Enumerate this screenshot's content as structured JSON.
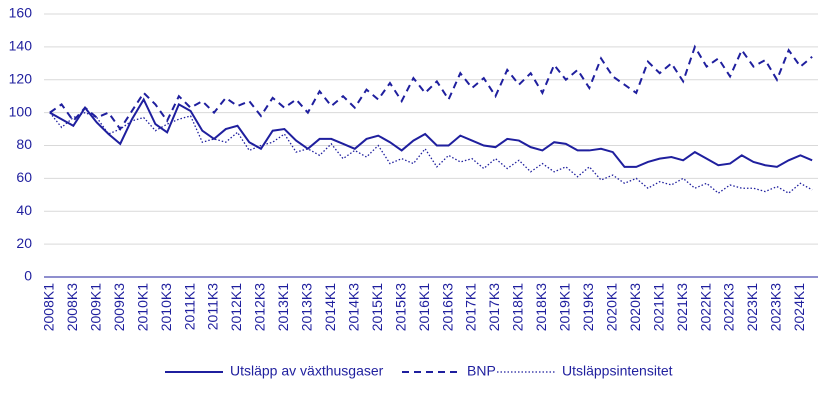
{
  "chart_data": {
    "type": "line",
    "categories": [
      "2008K1",
      null,
      "2008K3",
      null,
      "2009K1",
      null,
      "2009K3",
      null,
      "2010K1",
      null,
      "2010K3",
      null,
      "2011K1",
      null,
      "2011K3",
      null,
      "2012K1",
      null,
      "2012K3",
      null,
      "2013K1",
      null,
      "2013K3",
      null,
      "2014K1",
      null,
      "2014K3",
      null,
      "2015K1",
      null,
      "2015K3",
      null,
      "2016K1",
      null,
      "2016K3",
      null,
      "2017K1",
      null,
      "2017K3",
      null,
      "2018K1",
      null,
      "2018K3",
      null,
      "2019K1",
      null,
      "2019K3",
      null,
      "2020K1",
      null,
      "2020K3",
      null,
      "2021K1",
      null,
      "2021K3",
      null,
      "2022K1",
      null,
      "2022K3",
      null,
      "2023K1",
      null,
      "2023K3",
      null,
      "2024K1",
      null
    ],
    "series": [
      {
        "name": "Utsläpp av växthusgaser",
        "color": "#1f1f9e",
        "dash": "solid",
        "values": [
          100,
          96,
          92,
          103,
          94,
          87,
          81,
          96,
          108,
          93,
          88,
          105,
          101,
          89,
          84,
          90,
          92,
          82,
          78,
          89,
          90,
          83,
          78,
          84,
          84,
          81,
          78,
          84,
          86,
          82,
          77,
          83,
          87,
          80,
          80,
          86,
          83,
          80,
          79,
          84,
          83,
          79,
          77,
          82,
          81,
          77,
          77,
          78,
          76,
          67,
          67,
          70,
          72,
          73,
          71,
          76,
          72,
          68,
          69,
          74,
          70,
          68,
          67,
          71,
          74,
          71
        ]
      },
      {
        "name": "BNP",
        "color": "#1f1f9e",
        "dash": "dashed",
        "values": [
          100,
          105,
          95,
          103,
          97,
          100,
          90,
          101,
          112,
          105,
          95,
          110,
          103,
          107,
          100,
          109,
          104,
          107,
          98,
          109,
          103,
          108,
          100,
          113,
          104,
          110,
          103,
          114,
          108,
          118,
          107,
          121,
          112,
          119,
          108,
          124,
          115,
          121,
          110,
          126,
          117,
          124,
          112,
          129,
          120,
          126,
          115,
          133,
          122,
          117,
          112,
          131,
          124,
          130,
          119,
          140,
          128,
          133,
          122,
          138,
          128,
          132,
          120,
          138,
          128,
          134
        ]
      },
      {
        "name": "Utsläppsintensitet",
        "color": "#1f1f9e",
        "dash": "dotted",
        "values": [
          100,
          91,
          97,
          100,
          97,
          87,
          90,
          95,
          97,
          89,
          93,
          96,
          98,
          82,
          84,
          82,
          88,
          77,
          80,
          82,
          87,
          76,
          78,
          74,
          81,
          72,
          77,
          73,
          80,
          69,
          72,
          69,
          78,
          67,
          74,
          70,
          72,
          66,
          72,
          66,
          71,
          64,
          69,
          64,
          67,
          61,
          67,
          59,
          62,
          57,
          60,
          54,
          58,
          56,
          60,
          54,
          57,
          51,
          56,
          54,
          54,
          52,
          55,
          51,
          57,
          53
        ]
      }
    ],
    "ylim": [
      0,
      160
    ],
    "yticks": [
      0,
      20,
      40,
      60,
      80,
      100,
      120,
      140,
      160
    ],
    "grid": true
  }
}
